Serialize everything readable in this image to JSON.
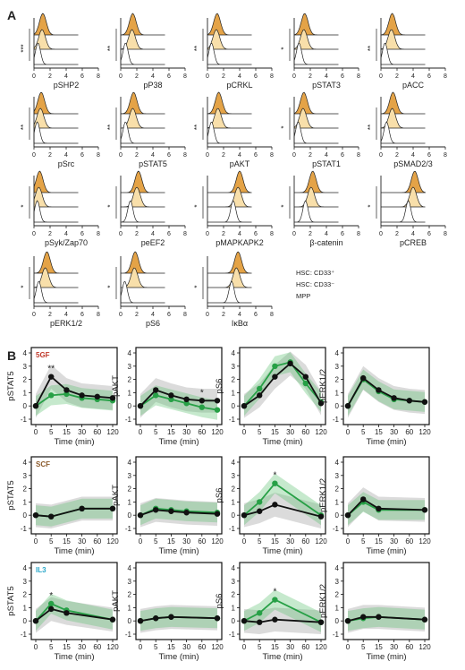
{
  "panel_labels": {
    "a": "A",
    "b": "B"
  },
  "panel_a": {
    "x_ticks": [
      "0",
      "2",
      "4",
      "6",
      "8"
    ],
    "legend": [
      "HSC: CD33⁺",
      "HSC: CD33⁻",
      "MPP"
    ],
    "legend_colors": [
      "#e4a347",
      "#f8dfaa",
      "#ffffff"
    ],
    "markers": [
      {
        "name": "pSHP2",
        "sig": "***",
        "peaks": [
          1.1,
          1.0,
          0.5
        ]
      },
      {
        "name": "pP38",
        "sig": "**",
        "peaks": [
          1.5,
          1.4,
          0.6
        ]
      },
      {
        "name": "pCRKL",
        "sig": "**",
        "peaks": [
          1.2,
          1.1,
          0.5
        ]
      },
      {
        "name": "pSTAT3",
        "sig": "*",
        "peaks": [
          1.3,
          1.2,
          0.6
        ]
      },
      {
        "name": "pACC",
        "sig": "**",
        "peaks": [
          1.4,
          1.3,
          0.5
        ]
      },
      {
        "name": "pSrc",
        "sig": "**",
        "peaks": [
          0.9,
          0.8,
          0.4
        ]
      },
      {
        "name": "pSTAT5",
        "sig": "**",
        "peaks": [
          1.6,
          1.5,
          0.6
        ]
      },
      {
        "name": "pAKT",
        "sig": "**",
        "peaks": [
          1.4,
          1.3,
          0.5
        ]
      },
      {
        "name": "pSTAT1",
        "sig": "*",
        "peaks": [
          1.2,
          1.1,
          0.5
        ]
      },
      {
        "name": "pSMAD2/3",
        "sig": "**",
        "peaks": [
          1.5,
          1.4,
          0.7
        ]
      },
      {
        "name": "pSyk/Zap70",
        "sig": "*",
        "peaks": [
          0.7,
          0.6,
          0.4
        ]
      },
      {
        "name": "peEF2",
        "sig": "*",
        "peaks": [
          2.2,
          2.0,
          1.2
        ]
      },
      {
        "name": "pMAPKAPK2",
        "sig": "*",
        "peaks": [
          4.0,
          3.8,
          3.2
        ]
      },
      {
        "name": "β-catenin",
        "sig": "*",
        "peaks": [
          2.3,
          2.1,
          1.4
        ]
      },
      {
        "name": "pCREB",
        "sig": "*",
        "peaks": [
          4.2,
          4.0,
          3.4
        ]
      },
      {
        "name": "pERK1/2",
        "sig": "*",
        "peaks": [
          1.6,
          1.4,
          0.6
        ]
      },
      {
        "name": "pS6",
        "sig": "*",
        "peaks": [
          1.8,
          1.7,
          0.5
        ]
      },
      {
        "name": "IκBα",
        "sig": "*",
        "peaks": [
          3.8,
          3.6,
          3.0
        ]
      }
    ]
  },
  "chart_data": {
    "type": "line",
    "xlabel": "Time (min)",
    "x_ticks": [
      0,
      5,
      15,
      30,
      60,
      120
    ],
    "ylim": [
      -1,
      4
    ],
    "y_ticks": [
      -1,
      0,
      1,
      2,
      3,
      4
    ],
    "colors": {
      "black": "#111111",
      "green": "#27a046",
      "band_black": "#999999",
      "band_green": "#5bbf6f"
    },
    "rows": [
      {
        "condition": "5GF",
        "condition_color": "#c0392b",
        "panels": [
          {
            "ylabel": "pSTAT5",
            "x": [
              0,
              5,
              15,
              30,
              60,
              120
            ],
            "black": [
              0,
              2.2,
              1.2,
              0.8,
              0.7,
              0.6
            ],
            "green": [
              0,
              0.8,
              0.9,
              0.6,
              0.5,
              0.4
            ],
            "star": {
              "x": 5,
              "text": "**"
            }
          },
          {
            "ylabel": "pAKT",
            "x": [
              0,
              5,
              15,
              30,
              60,
              120
            ],
            "black": [
              0,
              1.2,
              0.8,
              0.5,
              0.4,
              0.4
            ],
            "green": [
              0,
              0.8,
              0.5,
              0.2,
              -0.1,
              -0.3
            ],
            "star": {
              "x": 60,
              "text": "*"
            }
          },
          {
            "ylabel": "pS6",
            "x": [
              0,
              5,
              15,
              30,
              60,
              120
            ],
            "black": [
              0,
              0.8,
              2.2,
              3.2,
              2.2,
              0.2
            ],
            "green": [
              0,
              1.3,
              3.0,
              3.3,
              1.7,
              0.3
            ],
            "star": null
          },
          {
            "ylabel": "pERK1/2",
            "x": [
              0,
              5,
              15,
              30,
              60,
              120
            ],
            "black": [
              0,
              2.1,
              1.2,
              0.6,
              0.4,
              0.3
            ],
            "green": [
              0,
              2.0,
              1.1,
              0.5,
              0.4,
              0.3
            ],
            "star": null
          }
        ]
      },
      {
        "condition": "SCF",
        "condition_color": "#8b5a2b",
        "panels": [
          {
            "ylabel": "pSTAT5",
            "x": [
              0,
              5,
              30,
              120
            ],
            "black": [
              0,
              -0.1,
              0.5,
              0.5
            ],
            "green": [
              0,
              -0.1,
              0.5,
              0.5
            ],
            "star": null
          },
          {
            "ylabel": "pAKT",
            "x": [
              0,
              5,
              15,
              30,
              120
            ],
            "black": [
              0,
              0.4,
              0.3,
              0.2,
              0.1
            ],
            "green": [
              0,
              0.5,
              0.4,
              0.3,
              0.2
            ],
            "star": null
          },
          {
            "ylabel": "pS6",
            "x": [
              0,
              5,
              15,
              120
            ],
            "black": [
              0,
              0.3,
              0.8,
              -0.1
            ],
            "green": [
              0,
              1.0,
              2.4,
              0.0
            ],
            "star": {
              "x": 15,
              "text": "*"
            }
          },
          {
            "ylabel": "pERK1/2",
            "x": [
              0,
              5,
              15,
              120
            ],
            "black": [
              0,
              1.2,
              0.5,
              0.4
            ],
            "green": [
              0,
              1.0,
              0.4,
              0.4
            ],
            "star": null
          }
        ]
      },
      {
        "condition": "IL3",
        "condition_color": "#2aa7c9",
        "panels": [
          {
            "ylabel": "pSTAT5",
            "x": [
              0,
              5,
              15,
              120
            ],
            "black": [
              0,
              0.9,
              0.6,
              0.1
            ],
            "green": [
              0,
              1.3,
              0.8,
              0.1
            ],
            "star": {
              "x": 5,
              "text": "*"
            }
          },
          {
            "ylabel": "pAKT",
            "x": [
              0,
              5,
              15,
              120
            ],
            "black": [
              0,
              0.2,
              0.3,
              0.2
            ],
            "green": [
              0,
              0.2,
              0.3,
              0.2
            ],
            "star": null
          },
          {
            "ylabel": "pS6",
            "x": [
              0,
              5,
              15,
              120
            ],
            "black": [
              0,
              -0.1,
              0.1,
              -0.1
            ],
            "green": [
              0,
              0.6,
              1.6,
              -0.1
            ],
            "star": {
              "x": 15,
              "text": "*"
            }
          },
          {
            "ylabel": "pERK1/2",
            "x": [
              0,
              5,
              15,
              120
            ],
            "black": [
              0,
              0.3,
              0.3,
              0.1
            ],
            "green": [
              0,
              0.2,
              0.3,
              0.1
            ],
            "star": null
          }
        ]
      }
    ]
  }
}
